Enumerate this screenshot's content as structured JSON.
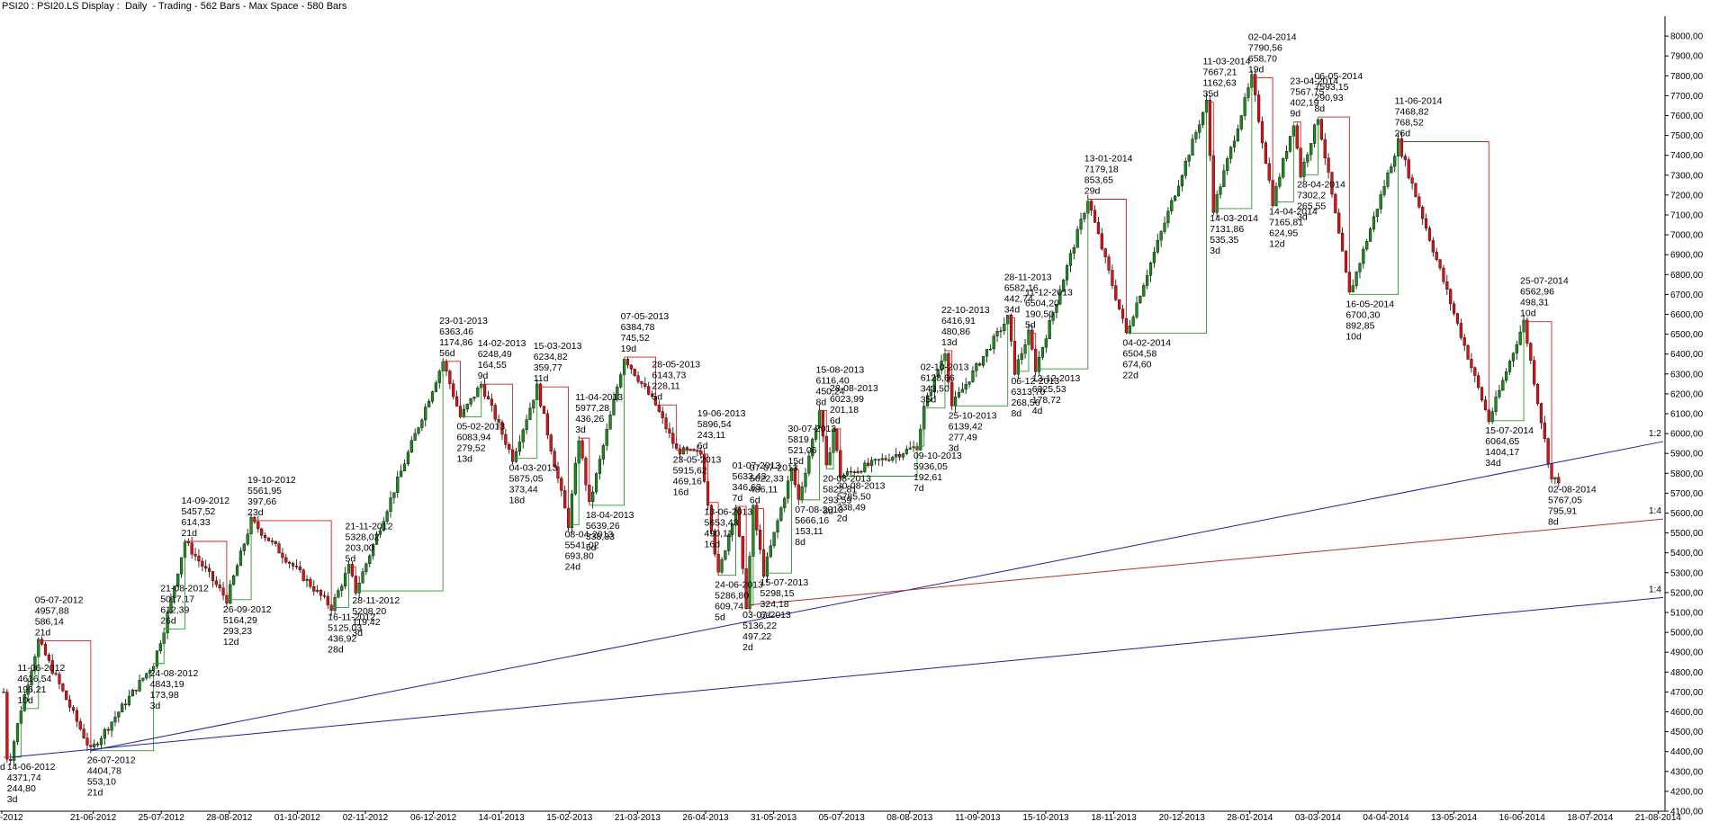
{
  "colors": {
    "up": "#1a8a1a",
    "down": "#e01010",
    "wick": "#000000",
    "zigzag": "#2a9a2a",
    "zigzag_down": "#cc2020",
    "fan_blue": "#2020a0",
    "fan_red": "#b03030",
    "axis": "#000000"
  },
  "chart_data": {
    "type": "candlestick",
    "title": "PSI20 : PSI20.LS Display :  Daily  - Trading - 562 Bars - Max Space - 580 Bars",
    "xlabel": "",
    "ylabel": "",
    "ylim": [
      4100,
      8100
    ],
    "yticks": [
      "4100,00",
      "4200,00",
      "4300,00",
      "4400,00",
      "4500,00",
      "4600,00",
      "4700,00",
      "4800,00",
      "4900,00",
      "5000,00",
      "5100,00",
      "5200,00",
      "5300,00",
      "5400,00",
      "5500,00",
      "5600,00",
      "5700,00",
      "5800,00",
      "5900,00",
      "6000,00",
      "6100,00",
      "6200,00",
      "6300,00",
      "6400,00",
      "6500,00",
      "6600,00",
      "6700,00",
      "6800,00",
      "6900,00",
      "7000,00",
      "7100,00",
      "7200,00",
      "7300,00",
      "7400,00",
      "7500,00",
      "7600,00",
      "7700,00",
      "7800,00",
      "7900,00",
      "8000,00"
    ],
    "xticks": [
      "-2012",
      "21-06-2012",
      "25-07-2012",
      "28-08-2012",
      "01-10-2012",
      "02-11-2012",
      "06-12-2012",
      "14-01-2013",
      "15-02-2013",
      "21-03-2013",
      "26-04-2013",
      "31-05-2013",
      "05-07-2013",
      "08-08-2013",
      "11-09-2013",
      "15-10-2013",
      "18-11-2013",
      "20-12-2013",
      "28-01-2014",
      "03-03-2014",
      "04-04-2014",
      "13-05-2014",
      "16-06-2014",
      "18-07-2014",
      "21-08-2014"
    ],
    "grid": false,
    "legend": "none",
    "swing_points": [
      {
        "x": 0,
        "y": 4371.74,
        "lines": [
          "d"
        ],
        "pos": "below"
      },
      {
        "x": 2,
        "y": 4371.74,
        "lines": [
          "14-06-2012",
          "4371,74",
          "244,80",
          "3d"
        ],
        "pos": "below"
      },
      {
        "x": 5,
        "y": 4616.54,
        "lines": [
          "11-06-2012",
          "4616,54",
          "196,21",
          "10d"
        ],
        "pos": "above"
      },
      {
        "x": 10,
        "y": 4957.88,
        "lines": [
          "05-07-2012",
          "4957,88",
          "586,14",
          "21d"
        ],
        "pos": "above"
      },
      {
        "x": 25,
        "y": 4404.78,
        "lines": [
          "26-07-2012",
          "4404,78",
          "553,10",
          "21d"
        ],
        "pos": "below"
      },
      {
        "x": 43,
        "y": 4843.19,
        "lines": [
          "24-08-2012",
          "4843,19",
          "173,98",
          "3d"
        ],
        "pos": "below"
      },
      {
        "x": 46,
        "y": 5017.17,
        "lines": [
          "21-08-2012",
          "5017,17",
          "612,39",
          "26d"
        ],
        "pos": "above"
      },
      {
        "x": 52,
        "y": 5457.52,
        "lines": [
          "14-09-2012",
          "5457,52",
          "614,33",
          "21d"
        ],
        "pos": "above"
      },
      {
        "x": 64,
        "y": 5164.29,
        "lines": [
          "26-09-2012",
          "5164,29",
          "293,23",
          "12d"
        ],
        "pos": "below"
      },
      {
        "x": 71,
        "y": 5561.95,
        "lines": [
          "19-10-2012",
          "5561,95",
          "397,66",
          "23d"
        ],
        "pos": "above"
      },
      {
        "x": 94,
        "y": 5125.03,
        "lines": [
          "16-11-2012",
          "5125,03",
          "436,92",
          "28d"
        ],
        "pos": "below"
      },
      {
        "x": 99,
        "y": 5328.02,
        "lines": [
          "21-11-2012",
          "5328,02",
          "203,00",
          "5d"
        ],
        "pos": "above"
      },
      {
        "x": 101,
        "y": 5208.2,
        "lines": [
          "28-11-2012",
          "5208,20",
          "119,42",
          "3d"
        ],
        "pos": "below"
      },
      {
        "x": 126,
        "y": 6363.46,
        "lines": [
          "23-01-2013",
          "6363,46",
          "1174,86",
          "56d"
        ],
        "pos": "above"
      },
      {
        "x": 131,
        "y": 6083.94,
        "lines": [
          "05-02-2013",
          "6083,94",
          "279,52",
          "13d"
        ],
        "pos": "below"
      },
      {
        "x": 137,
        "y": 6248.49,
        "lines": [
          "14-02-2013",
          "6248,49",
          "164,55",
          "9d"
        ],
        "pos": "above"
      },
      {
        "x": 146,
        "y": 5875.05,
        "lines": [
          "04-03-2013",
          "5875,05",
          "373,44",
          "18d"
        ],
        "pos": "below"
      },
      {
        "x": 153,
        "y": 6234.82,
        "lines": [
          "15-03-2013",
          "6234,82",
          "359,77",
          "11d"
        ],
        "pos": "above"
      },
      {
        "x": 162,
        "y": 5541.02,
        "lines": [
          "08-04-2013",
          "5541,02",
          "693,80",
          "24d"
        ],
        "pos": "below"
      },
      {
        "x": 165,
        "y": 5977.28,
        "lines": [
          "11-04-2013",
          "5977,28",
          "436,26",
          "3d"
        ],
        "pos": "above"
      },
      {
        "x": 168,
        "y": 5639.26,
        "lines": [
          "18-04-2013",
          "5639,26",
          "338,33",
          "5d"
        ],
        "pos": "below"
      },
      {
        "x": 178,
        "y": 6384.78,
        "lines": [
          "07-05-2013",
          "6384,78",
          "745,52",
          "19d"
        ],
        "pos": "above"
      },
      {
        "x": 187,
        "y": 6143.73,
        "lines": [
          "28-05-2013",
          "6143,73",
          "228,11",
          "5d"
        ],
        "pos": "above"
      },
      {
        "x": 193,
        "y": 5915.62,
        "lines": [
          "23-05-2013",
          "5915,62",
          "469,16",
          "16d"
        ],
        "pos": "below"
      },
      {
        "x": 200,
        "y": 5896.54,
        "lines": [
          "19-06-2013",
          "5896,54",
          "243,11",
          "6d"
        ],
        "pos": "above"
      },
      {
        "x": 202,
        "y": 5653.43,
        "lines": [
          "13-06-2013",
          "5653,43",
          "490,11",
          "16d"
        ],
        "pos": "below"
      },
      {
        "x": 205,
        "y": 5286.8,
        "lines": [
          "24-06-2013",
          "5286,80",
          "609,74",
          "5d"
        ],
        "pos": "below"
      },
      {
        "x": 210,
        "y": 5633.43,
        "lines": [
          "01-07-2013",
          "5633,43",
          "346,63",
          "7d"
        ],
        "pos": "above"
      },
      {
        "x": 213,
        "y": 5136.22,
        "lines": [
          "03-07-2013",
          "5136,22",
          "497,22",
          "2d"
        ],
        "pos": "below"
      },
      {
        "x": 215,
        "y": 5622.33,
        "lines": [
          "07-07-2013",
          "5622,33",
          "486,11",
          "6d"
        ],
        "pos": "above"
      },
      {
        "x": 218,
        "y": 5298.15,
        "lines": [
          "15-07-2013",
          "5298,15",
          "324,18",
          "6d"
        ],
        "pos": "below"
      },
      {
        "x": 226,
        "y": 5819.0,
        "lines": [
          "30-07-2013",
          "5819",
          "521,06",
          "15d"
        ],
        "pos": "above"
      },
      {
        "x": 228,
        "y": 5666.16,
        "lines": [
          "07-08-2013",
          "5666,16",
          "153,11",
          "8d"
        ],
        "pos": "below"
      },
      {
        "x": 234,
        "y": 6116.4,
        "lines": [
          "15-08-2013",
          "6116,40",
          "450,24",
          "8d"
        ],
        "pos": "above"
      },
      {
        "x": 236,
        "y": 5822.81,
        "lines": [
          "20-08-2013",
          "5822,81",
          "293,59",
          "3d"
        ],
        "pos": "below"
      },
      {
        "x": 238,
        "y": 6023.99,
        "lines": [
          "28-08-2013",
          "6023,99",
          "201,18",
          "6d"
        ],
        "pos": "above"
      },
      {
        "x": 240,
        "y": 5785.5,
        "lines": [
          "30-08-2013",
          "5785,50",
          "238,49",
          "2d"
        ],
        "pos": "below"
      },
      {
        "x": 262,
        "y": 5936.05,
        "lines": [
          "09-10-2013",
          "5936,05",
          "192,61",
          "7d"
        ],
        "pos": "below"
      },
      {
        "x": 264,
        "y": 6128.66,
        "lines": [
          "02-10-2013",
          "6128,66",
          "343,50",
          "35d"
        ],
        "pos": "above"
      },
      {
        "x": 270,
        "y": 6416.91,
        "lines": [
          "22-10-2013",
          "6416,91",
          "480,86",
          "13d"
        ],
        "pos": "above"
      },
      {
        "x": 272,
        "y": 6139.42,
        "lines": [
          "25-10-2013",
          "6139,42",
          "277,49",
          "3d"
        ],
        "pos": "below"
      },
      {
        "x": 288,
        "y": 6582.16,
        "lines": [
          "28-11-2013",
          "6582,16",
          "442,74",
          "34d"
        ],
        "pos": "above"
      },
      {
        "x": 290,
        "y": 6313.7,
        "lines": [
          "06-12-2013",
          "6313,70",
          "268,56",
          "8d"
        ],
        "pos": "below"
      },
      {
        "x": 294,
        "y": 6504.2,
        "lines": [
          "11-12-2013",
          "6504,20",
          "190,50",
          "5d"
        ],
        "pos": "above"
      },
      {
        "x": 296,
        "y": 6325.53,
        "lines": [
          "13-12-2013",
          "6325,53",
          "178,72",
          "4d"
        ],
        "pos": "below"
      },
      {
        "x": 311,
        "y": 7179.18,
        "lines": [
          "13-01-2014",
          "7179,18",
          "853,65",
          "29d"
        ],
        "pos": "above"
      },
      {
        "x": 322,
        "y": 6504.58,
        "lines": [
          "04-02-2014",
          "6504,58",
          "674,60",
          "22d"
        ],
        "pos": "below"
      },
      {
        "x": 345,
        "y": 7667.21,
        "lines": [
          "11-03-2014",
          "7667,21",
          "1162,63",
          "35d"
        ],
        "pos": "above"
      },
      {
        "x": 347,
        "y": 7131.86,
        "lines": [
          "14-03-2014",
          "7131,86",
          "535,35",
          "3d"
        ],
        "pos": "below"
      },
      {
        "x": 358,
        "y": 7790.56,
        "lines": [
          "02-04-2014",
          "7790,56",
          "658,70",
          "19d"
        ],
        "pos": "above"
      },
      {
        "x": 364,
        "y": 7165.81,
        "lines": [
          "14-04-2014",
          "7165,81",
          "624,95",
          "12d"
        ],
        "pos": "below"
      },
      {
        "x": 370,
        "y": 7567.75,
        "lines": [
          "23-04-2014",
          "7567,75",
          "402,19",
          "9d"
        ],
        "pos": "above"
      },
      {
        "x": 372,
        "y": 7302.2,
        "lines": [
          "28-04-2014",
          "7302,2",
          "265,55",
          "3d"
        ],
        "pos": "below"
      },
      {
        "x": 377,
        "y": 7593.15,
        "lines": [
          "06-05-2014",
          "7593,15",
          "290,93",
          "8d"
        ],
        "pos": "above"
      },
      {
        "x": 386,
        "y": 6700.3,
        "lines": [
          "16-05-2014",
          "6700,30",
          "892,85",
          "10d"
        ],
        "pos": "below"
      },
      {
        "x": 400,
        "y": 7468.82,
        "lines": [
          "11-06-2014",
          "7468,82",
          "768,52",
          "26d"
        ],
        "pos": "above"
      },
      {
        "x": 426,
        "y": 6064.65,
        "lines": [
          "15-07-2014",
          "6064,65",
          "1404,17",
          "34d"
        ],
        "pos": "below"
      },
      {
        "x": 436,
        "y": 6562.96,
        "lines": [
          "25-07-2014",
          "6562,96",
          "498,31",
          "10d"
        ],
        "pos": "above"
      },
      {
        "x": 444,
        "y": 5767.05,
        "lines": [
          "02-08-2014",
          "5767,05",
          "795,91",
          "8d"
        ],
        "pos": "below"
      }
    ],
    "fan_lines": [
      {
        "label": "1:2",
        "from": [
          25,
          4404.78
        ],
        "to": [
          476,
          5960
        ],
        "color": "fan_blue"
      },
      {
        "label": "1:4",
        "from": [
          213,
          5136.22
        ],
        "to": [
          476,
          5570
        ],
        "color": "fan_red"
      },
      {
        "label": "1:4",
        "from": [
          2,
          4371.74
        ],
        "to": [
          476,
          5175
        ],
        "color": "fan_blue"
      }
    ],
    "x_range": [
      0,
      476
    ]
  }
}
